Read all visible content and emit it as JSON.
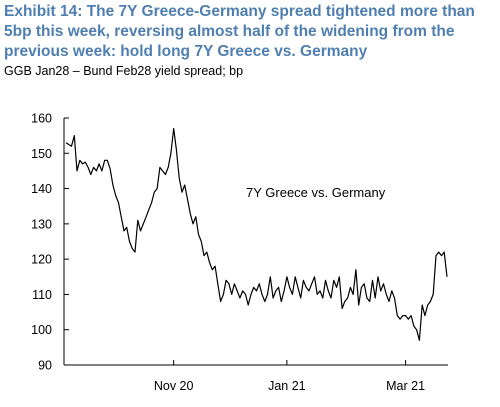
{
  "header": {
    "title": "Exhibit 14: The 7Y Greece-Germany spread tightened more than 5bp this week, reversing almost half of the widening from the previous week: hold long 7Y Greece vs. Germany",
    "subtitle": "GGB Jan28 – Bund Feb28 yield spread; bp"
  },
  "chart_data": {
    "type": "line",
    "title": "Exhibit 14: The 7Y Greece-Germany spread tightened more than 5bp this week, reversing almost half of the widening from the previous week: hold long 7Y Greece vs. Germany",
    "subtitle": "GGB Jan28 – Bund Feb28 yield spread; bp",
    "xlabel": "",
    "ylabel": "",
    "ylim": [
      90,
      160
    ],
    "yticks": [
      90,
      100,
      110,
      120,
      130,
      140,
      150,
      160
    ],
    "xtick_labels": [
      {
        "label": "Nov 20",
        "index": 39
      },
      {
        "label": "Jan 21",
        "index": 80
      },
      {
        "label": "Mar 21",
        "index": 123
      }
    ],
    "grid": false,
    "series": [
      {
        "name": "7Y Greece vs. Germany",
        "color": "#000000",
        "values": [
          153,
          152.5,
          152,
          155,
          145,
          148,
          147,
          147.5,
          146,
          144,
          146,
          145,
          147,
          145,
          148,
          148,
          145.5,
          141,
          138,
          136,
          132,
          128,
          129,
          125,
          123,
          122,
          131,
          128,
          130,
          132,
          134,
          136,
          139,
          140,
          146,
          145,
          144,
          146,
          150,
          157,
          151,
          143,
          139,
          141,
          137,
          133,
          130,
          132,
          127,
          125,
          121,
          122,
          119,
          117,
          118,
          113,
          108,
          110,
          114,
          113,
          110,
          113,
          111,
          109,
          111,
          110,
          107,
          110,
          112,
          111,
          113,
          110,
          108,
          110,
          115,
          109,
          111,
          112,
          108,
          111,
          115,
          112,
          110,
          115,
          112,
          109,
          114,
          112,
          111,
          113,
          115,
          110,
          111,
          109,
          114,
          111,
          109,
          114,
          112,
          115,
          106,
          108,
          109,
          112,
          110,
          117,
          107,
          112,
          113,
          109,
          108,
          114,
          109,
          115,
          111,
          113,
          110,
          108,
          111,
          109,
          104,
          103,
          104,
          104,
          103,
          104,
          101,
          100,
          97,
          107,
          104,
          107,
          108,
          110,
          121,
          122,
          121,
          122,
          115
        ],
        "annotation": "7Y Greece vs. Germany"
      }
    ]
  }
}
